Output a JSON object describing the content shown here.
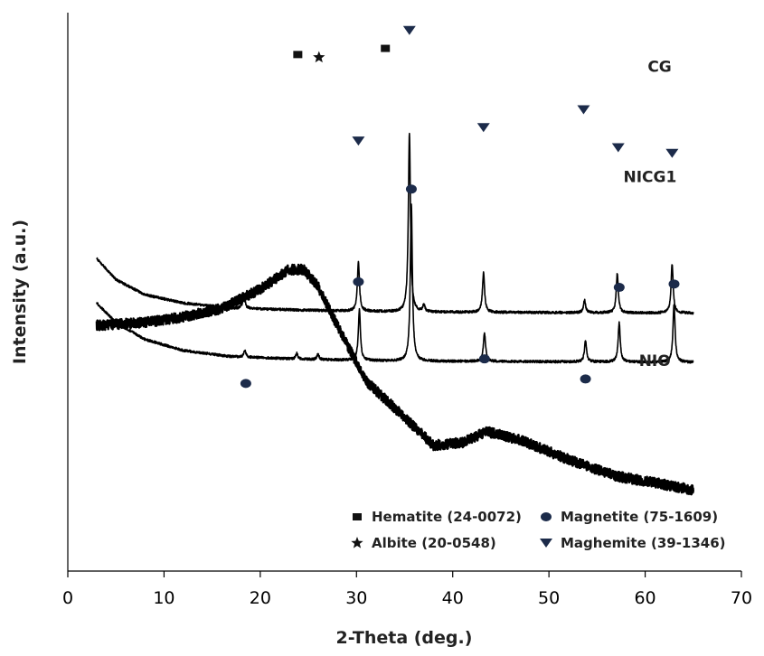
{
  "chart_data": {
    "type": "line",
    "xlabel": "2-Theta (deg.)",
    "ylabel": "Intensity (a.u.)",
    "xlim": [
      0,
      70
    ],
    "xticks": [
      "0",
      "10",
      "20",
      "30",
      "40",
      "50",
      "60",
      "70"
    ],
    "y_ticks_shown": false,
    "grid": false,
    "x_range_data": [
      3,
      65
    ],
    "series": [
      {
        "name": "CG",
        "trace": "amorphous",
        "noise": 0.9,
        "points": [
          [
            3,
            56.0
          ],
          [
            8,
            55.5
          ],
          [
            12,
            54.5
          ],
          [
            16,
            53.0
          ],
          [
            20,
            49.5
          ],
          [
            23,
            46.0
          ],
          [
            24.5,
            46.0
          ],
          [
            26,
            49.0
          ],
          [
            28,
            56.0
          ],
          [
            31,
            66.0
          ],
          [
            35,
            72.5
          ],
          [
            38,
            77.5
          ],
          [
            41,
            77.0
          ],
          [
            43.5,
            75.0
          ],
          [
            47,
            76.5
          ],
          [
            52,
            80.0
          ],
          [
            57,
            83.0
          ],
          [
            62,
            84.5
          ],
          [
            65,
            85.5
          ]
        ],
        "markers": []
      },
      {
        "name": "NICG1",
        "trace": "crystalline",
        "noise": 0.22,
        "baseline": [
          [
            3,
            52.0
          ],
          [
            5,
            55.5
          ],
          [
            8,
            58.5
          ],
          [
            12,
            60.5
          ],
          [
            17,
            61.6
          ],
          [
            25,
            62.1
          ],
          [
            35,
            62.4
          ],
          [
            50,
            62.5
          ],
          [
            65,
            62.6
          ]
        ],
        "peaks": [
          [
            18.4,
            1.2
          ],
          [
            23.8,
            1.0
          ],
          [
            26.0,
            1.0
          ],
          [
            30.3,
            9.0
          ],
          [
            35.7,
            28.0
          ],
          [
            43.3,
            5.2
          ],
          [
            53.8,
            3.8
          ],
          [
            57.3,
            7.0
          ],
          [
            63.0,
            10.4
          ]
        ],
        "markers": [
          {
            "symbol": "circle",
            "x": 18.5,
            "y": 66.4
          },
          {
            "symbol": "circle",
            "x": 30.2,
            "y": 48.2
          },
          {
            "symbol": "circle",
            "x": 35.7,
            "y": 31.6
          },
          {
            "symbol": "circle",
            "x": 43.3,
            "y": 62.0
          },
          {
            "symbol": "circle",
            "x": 53.8,
            "y": 65.6
          },
          {
            "symbol": "circle",
            "x": 57.3,
            "y": 49.2
          },
          {
            "symbol": "circle",
            "x": 63.0,
            "y": 48.6
          }
        ]
      },
      {
        "name": "NIO",
        "trace": "crystalline",
        "noise": 0.22,
        "baseline": [
          [
            3,
            44.0
          ],
          [
            5,
            47.8
          ],
          [
            8,
            50.5
          ],
          [
            12,
            52.0
          ],
          [
            17,
            52.9
          ],
          [
            25,
            53.3
          ],
          [
            35,
            53.6
          ],
          [
            50,
            53.7
          ],
          [
            65,
            53.8
          ]
        ],
        "peaks": [
          [
            18.3,
            2.6
          ],
          [
            30.2,
            8.8
          ],
          [
            35.5,
            32.0
          ],
          [
            37.0,
            1.2
          ],
          [
            43.2,
            7.0
          ],
          [
            53.7,
            2.2
          ],
          [
            57.1,
            7.0
          ],
          [
            62.8,
            8.8
          ]
        ],
        "markers": [
          {
            "symbol": "triangle-down",
            "x": 30.2,
            "y": 23.0
          },
          {
            "symbol": "triangle-down",
            "x": 35.5,
            "y": 3.2
          },
          {
            "symbol": "triangle-down",
            "x": 43.2,
            "y": 20.6
          },
          {
            "symbol": "triangle-down",
            "x": 53.6,
            "y": 17.4
          },
          {
            "symbol": "triangle-down",
            "x": 57.2,
            "y": 24.2
          },
          {
            "symbol": "triangle-down",
            "x": 62.8,
            "y": 25.2
          },
          {
            "symbol": "square",
            "x": 23.9,
            "y": 7.5
          },
          {
            "symbol": "star",
            "x": 26.1,
            "y": 8.0
          },
          {
            "symbol": "square",
            "x": 33.0,
            "y": 6.4
          }
        ]
      }
    ],
    "series_label_positions": [
      {
        "name": "CG",
        "x": 61.5,
        "y": 89.4
      },
      {
        "name": "NICG1",
        "x": 60.5,
        "y": 69.7
      },
      {
        "name": "NIO",
        "x": 61.0,
        "y": 36.7
      }
    ],
    "legend": {
      "placement": "bottom-right",
      "entries": [
        {
          "symbol": "square",
          "label": "Hematite (24-0072)"
        },
        {
          "symbol": "circle",
          "label": "Magnetite (75-1609)"
        },
        {
          "symbol": "star",
          "label": "Albite (20-0548)"
        },
        {
          "symbol": "triangle-down",
          "label": "Maghemite (39-1346)"
        }
      ]
    },
    "colors": {
      "trace": "#000000",
      "marker": "#1c2b4a",
      "axis": "#000000",
      "text": "#222222"
    }
  }
}
